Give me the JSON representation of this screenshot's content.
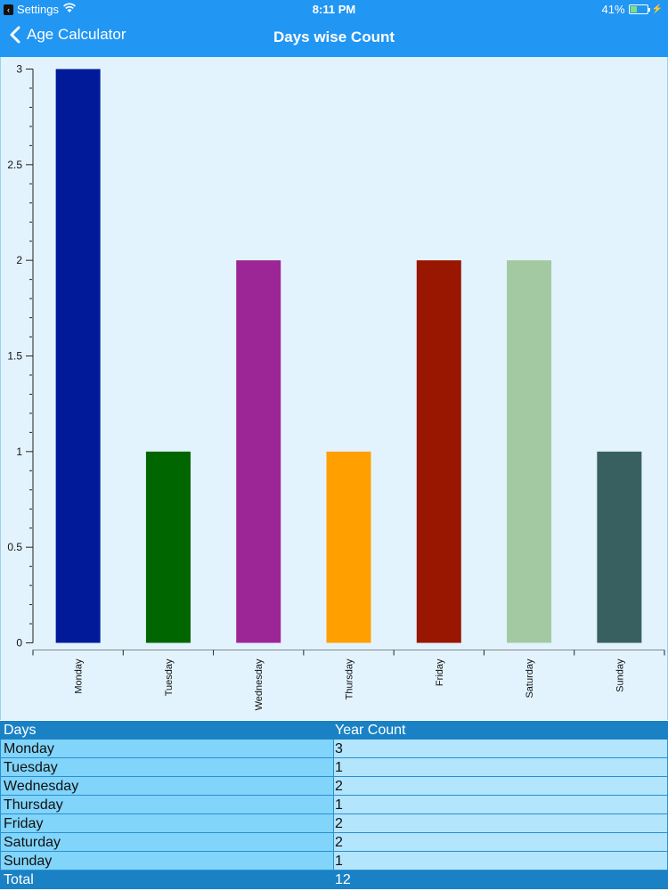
{
  "status": {
    "back_app": "Settings",
    "time": "8:11 PM",
    "battery": "41%",
    "battery_level": 0.41
  },
  "nav": {
    "back_label": "Age Calculator",
    "title": "Days wise Count"
  },
  "chart_data": {
    "type": "bar",
    "categories": [
      "Monday",
      "Tuesday",
      "Wednesday",
      "Thursday",
      "Friday",
      "Saturday",
      "Sunday"
    ],
    "values": [
      3,
      1,
      2,
      1,
      2,
      2,
      1
    ],
    "colors": [
      "#001a99",
      "#006600",
      "#9c2696",
      "#ffa000",
      "#991600",
      "#a3c9a3",
      "#386060"
    ],
    "ylim": [
      0,
      3
    ],
    "yticks": [
      "0",
      "0.5",
      "1",
      "1.5",
      "2",
      "2.5",
      "3"
    ],
    "ytick_values": [
      0,
      0.5,
      1,
      1.5,
      2,
      2.5,
      3
    ],
    "title": "",
    "xlabel": "",
    "ylabel": ""
  },
  "table": {
    "headers": [
      "Days",
      "Year Count"
    ],
    "rows": [
      [
        "Monday",
        "3"
      ],
      [
        "Tuesday",
        "1"
      ],
      [
        "Wednesday",
        "2"
      ],
      [
        "Thursday",
        "1"
      ],
      [
        "Friday",
        "2"
      ],
      [
        "Saturday",
        "2"
      ],
      [
        "Sunday",
        "1"
      ]
    ],
    "total_label": "Total",
    "total_value": "12"
  }
}
